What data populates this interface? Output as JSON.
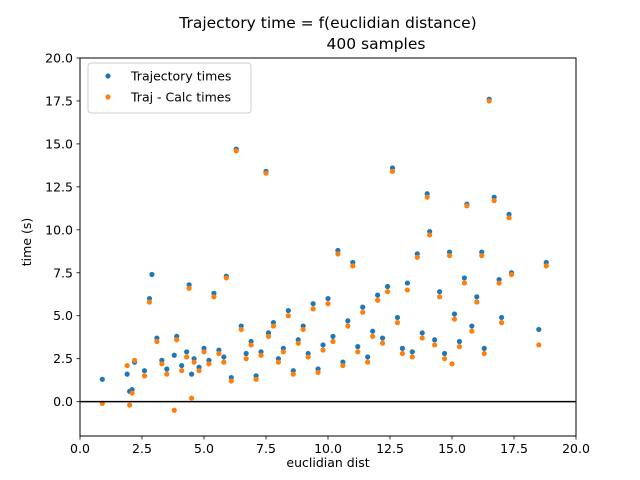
{
  "chart_data": {
    "type": "scatter",
    "title": "Trajectory time = f(euclidian distance)",
    "subtitle": "400 samples",
    "xlabel": "euclidian dist",
    "ylabel": "time (s)",
    "xlim": [
      0,
      20
    ],
    "ylim": [
      -2,
      20
    ],
    "xticks": [
      "0.0",
      "2.5",
      "5.0",
      "7.5",
      "10.0",
      "12.5",
      "15.0",
      "17.5",
      "20.0"
    ],
    "yticks": [
      "0.0",
      "2.5",
      "5.0",
      "7.5",
      "10.0",
      "12.5",
      "15.0",
      "17.5",
      "20.0"
    ],
    "xtick_values": [
      0,
      2.5,
      5,
      7.5,
      10,
      12.5,
      15,
      17.5,
      20
    ],
    "ytick_values": [
      0,
      2.5,
      5,
      7.5,
      10,
      12.5,
      15,
      17.5,
      20
    ],
    "hline_y": 0,
    "grid": false,
    "legend_position": "top-left",
    "series": [
      {
        "name": "Trajectory times",
        "color": "#1f77b4",
        "points": [
          [
            0.9,
            1.3
          ],
          [
            1.9,
            1.6
          ],
          [
            2.0,
            0.6
          ],
          [
            2.1,
            0.7
          ],
          [
            2.2,
            2.3
          ],
          [
            2.6,
            1.8
          ],
          [
            2.8,
            6.0
          ],
          [
            2.9,
            7.4
          ],
          [
            3.1,
            3.7
          ],
          [
            3.3,
            2.4
          ],
          [
            3.5,
            1.9
          ],
          [
            3.8,
            2.7
          ],
          [
            3.9,
            3.8
          ],
          [
            4.1,
            2.1
          ],
          [
            4.3,
            2.9
          ],
          [
            4.4,
            6.8
          ],
          [
            4.5,
            1.6
          ],
          [
            4.6,
            2.5
          ],
          [
            4.8,
            2.0
          ],
          [
            5.0,
            3.1
          ],
          [
            5.2,
            2.4
          ],
          [
            5.4,
            6.3
          ],
          [
            5.6,
            3.0
          ],
          [
            5.8,
            2.6
          ],
          [
            5.9,
            7.3
          ],
          [
            6.1,
            1.4
          ],
          [
            6.3,
            14.7
          ],
          [
            6.5,
            4.4
          ],
          [
            6.7,
            2.8
          ],
          [
            6.9,
            3.5
          ],
          [
            7.1,
            1.5
          ],
          [
            7.3,
            2.9
          ],
          [
            7.5,
            13.4
          ],
          [
            7.6,
            4.0
          ],
          [
            7.8,
            4.6
          ],
          [
            8.0,
            2.5
          ],
          [
            8.2,
            3.1
          ],
          [
            8.4,
            5.3
          ],
          [
            8.6,
            1.8
          ],
          [
            8.8,
            3.6
          ],
          [
            9.0,
            4.4
          ],
          [
            9.2,
            2.8
          ],
          [
            9.4,
            5.7
          ],
          [
            9.6,
            1.9
          ],
          [
            9.8,
            3.3
          ],
          [
            10.0,
            6.0
          ],
          [
            10.2,
            3.8
          ],
          [
            10.4,
            8.8
          ],
          [
            10.6,
            2.3
          ],
          [
            10.8,
            4.7
          ],
          [
            11.0,
            8.1
          ],
          [
            11.2,
            3.2
          ],
          [
            11.4,
            5.5
          ],
          [
            11.6,
            2.6
          ],
          [
            11.8,
            4.1
          ],
          [
            12.0,
            6.2
          ],
          [
            12.2,
            3.7
          ],
          [
            12.4,
            6.7
          ],
          [
            12.6,
            13.6
          ],
          [
            12.8,
            4.9
          ],
          [
            13.0,
            3.1
          ],
          [
            13.2,
            6.9
          ],
          [
            13.4,
            2.9
          ],
          [
            13.6,
            8.6
          ],
          [
            13.8,
            4.0
          ],
          [
            14.0,
            12.1
          ],
          [
            14.1,
            9.9
          ],
          [
            14.3,
            3.6
          ],
          [
            14.5,
            6.4
          ],
          [
            14.7,
            2.8
          ],
          [
            14.9,
            8.7
          ],
          [
            15.1,
            5.1
          ],
          [
            15.3,
            3.5
          ],
          [
            15.5,
            7.2
          ],
          [
            15.6,
            11.5
          ],
          [
            15.8,
            4.4
          ],
          [
            16.0,
            6.1
          ],
          [
            16.2,
            8.7
          ],
          [
            16.3,
            3.1
          ],
          [
            16.5,
            17.6
          ],
          [
            16.7,
            11.9
          ],
          [
            16.9,
            7.1
          ],
          [
            17.0,
            4.9
          ],
          [
            17.3,
            10.9
          ],
          [
            17.4,
            7.5
          ],
          [
            18.5,
            4.2
          ],
          [
            18.8,
            8.1
          ]
        ]
      },
      {
        "name": "Traj - Calc times",
        "color": "#ff7f0e",
        "points": [
          [
            0.9,
            -0.1
          ],
          [
            1.9,
            2.1
          ],
          [
            2.0,
            -0.2
          ],
          [
            2.1,
            0.5
          ],
          [
            2.2,
            2.4
          ],
          [
            2.6,
            1.5
          ],
          [
            2.8,
            5.8
          ],
          [
            3.1,
            3.5
          ],
          [
            3.3,
            2.2
          ],
          [
            3.5,
            1.6
          ],
          [
            3.8,
            -0.5
          ],
          [
            3.9,
            3.6
          ],
          [
            4.1,
            1.8
          ],
          [
            4.3,
            2.6
          ],
          [
            4.4,
            6.6
          ],
          [
            4.5,
            0.2
          ],
          [
            4.6,
            2.3
          ],
          [
            4.8,
            1.8
          ],
          [
            5.0,
            2.9
          ],
          [
            5.2,
            2.2
          ],
          [
            5.4,
            6.1
          ],
          [
            5.6,
            2.8
          ],
          [
            5.8,
            2.3
          ],
          [
            5.9,
            7.2
          ],
          [
            6.1,
            1.2
          ],
          [
            6.3,
            14.6
          ],
          [
            6.5,
            4.2
          ],
          [
            6.7,
            2.5
          ],
          [
            6.9,
            3.3
          ],
          [
            7.1,
            1.3
          ],
          [
            7.3,
            2.7
          ],
          [
            7.5,
            13.3
          ],
          [
            7.6,
            3.8
          ],
          [
            7.8,
            4.4
          ],
          [
            8.0,
            2.3
          ],
          [
            8.2,
            2.9
          ],
          [
            8.4,
            5.0
          ],
          [
            8.6,
            1.6
          ],
          [
            8.8,
            3.4
          ],
          [
            9.0,
            4.2
          ],
          [
            9.2,
            2.6
          ],
          [
            9.4,
            5.4
          ],
          [
            9.6,
            1.7
          ],
          [
            9.8,
            3.0
          ],
          [
            10.0,
            5.7
          ],
          [
            10.2,
            3.5
          ],
          [
            10.4,
            8.6
          ],
          [
            10.6,
            2.1
          ],
          [
            10.8,
            4.4
          ],
          [
            11.0,
            7.9
          ],
          [
            11.2,
            2.9
          ],
          [
            11.4,
            5.2
          ],
          [
            11.6,
            2.3
          ],
          [
            11.8,
            3.8
          ],
          [
            12.0,
            5.9
          ],
          [
            12.2,
            3.4
          ],
          [
            12.4,
            6.4
          ],
          [
            12.6,
            13.4
          ],
          [
            12.8,
            4.6
          ],
          [
            13.0,
            2.8
          ],
          [
            13.2,
            6.5
          ],
          [
            13.4,
            2.6
          ],
          [
            13.6,
            8.4
          ],
          [
            13.8,
            3.7
          ],
          [
            14.0,
            11.9
          ],
          [
            14.1,
            9.7
          ],
          [
            14.3,
            3.3
          ],
          [
            14.5,
            6.1
          ],
          [
            14.7,
            2.5
          ],
          [
            14.9,
            8.5
          ],
          [
            15.0,
            2.2
          ],
          [
            15.1,
            4.8
          ],
          [
            15.3,
            3.2
          ],
          [
            15.5,
            6.9
          ],
          [
            15.6,
            11.4
          ],
          [
            15.8,
            4.1
          ],
          [
            16.0,
            5.8
          ],
          [
            16.2,
            8.5
          ],
          [
            16.3,
            2.8
          ],
          [
            16.5,
            17.5
          ],
          [
            16.7,
            11.7
          ],
          [
            16.9,
            6.9
          ],
          [
            17.0,
            4.6
          ],
          [
            17.3,
            10.7
          ],
          [
            17.4,
            7.4
          ],
          [
            18.5,
            3.3
          ],
          [
            18.8,
            7.9
          ]
        ]
      }
    ]
  }
}
